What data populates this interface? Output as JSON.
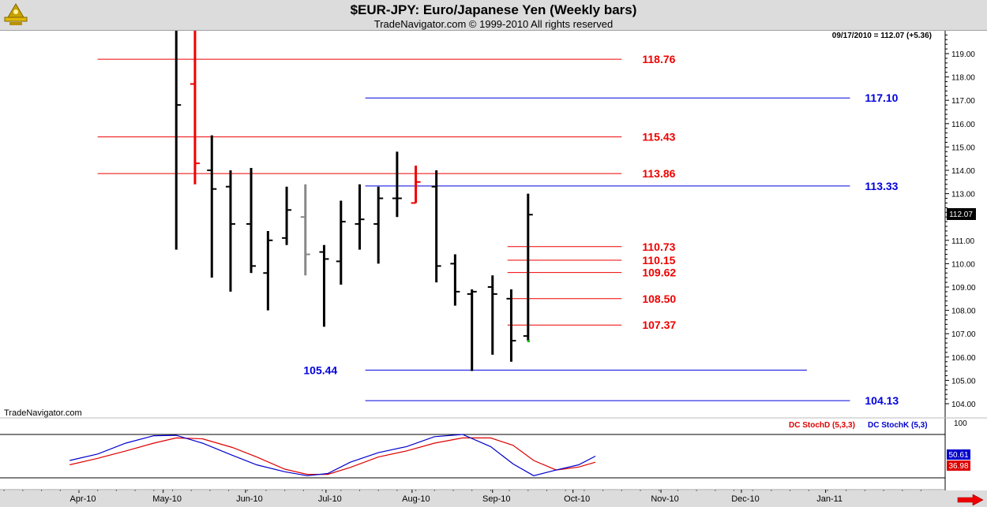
{
  "header": {
    "title": "$EUR-JPY:  Euro/Japanese Yen  (Weekly bars)",
    "subtitle": "TradeNavigator.com © 1999-2010 All rights reserved"
  },
  "watermark": "TradeNavigator.com",
  "last_info": "09/17/2010 = 112.07 (+5.36)",
  "last_price_label": "112.07",
  "colors": {
    "up_bar": "#000000",
    "red_bar": "#ee0000",
    "gray_bar": "#888888",
    "red_level": "#ee0000",
    "blue_level": "#0000dd",
    "stoch_d": "#dd0000",
    "stoch_k": "#0000cc",
    "header_bg": "#dcdcdc"
  },
  "indicator": {
    "stoch_d_label": "DC StochD (5,3,3)",
    "stoch_k_label": "DC StochK (5,3)",
    "top_label": "100",
    "stoch_k_value": "50.61",
    "stoch_d_value": "36.98"
  },
  "chart_data": {
    "type": "ohlc",
    "title": "$EUR-JPY:  Euro/Japanese Yen  (Weekly bars)",
    "ylim": [
      103.6,
      119.5
    ],
    "y_ticks": [
      "104.00",
      "105.00",
      "106.00",
      "107.00",
      "108.00",
      "109.00",
      "110.00",
      "111.00",
      "112.00",
      "113.00",
      "114.00",
      "115.00",
      "116.00",
      "117.00",
      "118.00",
      "119.00"
    ],
    "x_ticks": [
      {
        "label": "Apr-10",
        "week": 0
      },
      {
        "label": "May-10",
        "week": 4.5
      },
      {
        "label": "Jun-10",
        "week": 8.9
      },
      {
        "label": "Jul-10",
        "week": 13.2
      },
      {
        "label": "Aug-10",
        "week": 17.8
      },
      {
        "label": "Sep-10",
        "week": 22.1
      },
      {
        "label": "Oct-10",
        "week": 26.4
      },
      {
        "label": "Nov-10",
        "week": 31.1
      },
      {
        "label": "Dec-10",
        "week": 35.4
      },
      {
        "label": "Jan-11",
        "week": 39.9
      }
    ],
    "bars": [
      {
        "week": 5.2,
        "open": 120.5,
        "high": 120.5,
        "low": 110.6,
        "close": 116.8,
        "color": "black"
      },
      {
        "week": 6.2,
        "open": 117.7,
        "high": 120.5,
        "low": 113.4,
        "close": 114.3,
        "color": "red"
      },
      {
        "week": 7.1,
        "open": 114.0,
        "high": 115.5,
        "low": 109.4,
        "close": 113.2,
        "color": "black"
      },
      {
        "week": 8.1,
        "open": 113.3,
        "high": 114.0,
        "low": 108.8,
        "close": 111.7,
        "color": "black"
      },
      {
        "week": 9.2,
        "open": 111.7,
        "high": 114.1,
        "low": 109.6,
        "close": 109.9,
        "color": "black"
      },
      {
        "week": 10.1,
        "open": 109.6,
        "high": 111.4,
        "low": 108.0,
        "close": 111.0,
        "color": "black"
      },
      {
        "week": 11.1,
        "open": 111.1,
        "high": 113.3,
        "low": 110.8,
        "close": 112.3,
        "color": "black"
      },
      {
        "week": 12.1,
        "open": 112.0,
        "high": 113.4,
        "low": 109.5,
        "close": 110.4,
        "color": "gray"
      },
      {
        "week": 13.1,
        "open": 110.5,
        "high": 110.8,
        "low": 107.3,
        "close": 110.2,
        "color": "black"
      },
      {
        "week": 14.0,
        "open": 110.1,
        "high": 112.7,
        "low": 109.1,
        "close": 111.8,
        "color": "black"
      },
      {
        "week": 15.0,
        "open": 111.7,
        "high": 113.4,
        "low": 110.6,
        "close": 111.9,
        "color": "black"
      },
      {
        "week": 16.0,
        "open": 111.7,
        "high": 113.3,
        "low": 110.0,
        "close": 112.8,
        "color": "black"
      },
      {
        "week": 17.0,
        "open": 112.8,
        "high": 114.8,
        "low": 112.0,
        "close": 112.8,
        "color": "black"
      },
      {
        "week": 18.0,
        "open": 112.6,
        "high": 114.2,
        "low": 112.6,
        "close": 113.5,
        "color": "red"
      },
      {
        "week": 19.1,
        "open": 113.3,
        "high": 114.0,
        "low": 109.2,
        "close": 109.9,
        "color": "black"
      },
      {
        "week": 20.1,
        "open": 110.0,
        "high": 110.4,
        "low": 108.2,
        "close": 108.8,
        "color": "black"
      },
      {
        "week": 21.0,
        "open": 108.7,
        "high": 108.9,
        "low": 105.4,
        "close": 108.8,
        "color": "black"
      },
      {
        "week": 22.1,
        "open": 109.0,
        "high": 109.5,
        "low": 106.1,
        "close": 108.7,
        "color": "black"
      },
      {
        "week": 23.1,
        "open": 108.5,
        "high": 108.9,
        "low": 105.8,
        "close": 106.7,
        "color": "black"
      },
      {
        "week": 24.0,
        "open": 106.9,
        "high": 113.0,
        "low": 106.7,
        "close": 112.1,
        "color": "black"
      }
    ],
    "levels": [
      {
        "value": 118.76,
        "label": "118.76",
        "color": "red",
        "from": 1.0,
        "to": 29.0,
        "label_side": "right",
        "label_week": 30.1
      },
      {
        "value": 117.1,
        "label": "117.10",
        "color": "blue",
        "from": 15.3,
        "to": 41.2,
        "label_side": "right",
        "label_week": 42.0
      },
      {
        "value": 115.43,
        "label": "115.43",
        "color": "red",
        "from": 1.0,
        "to": 29.0,
        "label_side": "right",
        "label_week": 30.1
      },
      {
        "value": 113.86,
        "label": "113.86",
        "color": "red",
        "from": 1.0,
        "to": 29.0,
        "label_side": "right",
        "label_week": 30.1
      },
      {
        "value": 113.33,
        "label": "113.33",
        "color": "blue",
        "from": 15.3,
        "to": 41.2,
        "label_side": "right",
        "label_week": 42.0
      },
      {
        "value": 110.73,
        "label": "110.73",
        "color": "red",
        "from": 22.9,
        "to": 29.0,
        "label_side": "right",
        "label_week": 30.1
      },
      {
        "value": 110.15,
        "label": "110.15",
        "color": "red",
        "from": 22.9,
        "to": 29.0,
        "label_side": "right",
        "label_week": 30.1
      },
      {
        "value": 109.62,
        "label": "109.62",
        "color": "red",
        "from": 22.9,
        "to": 29.0,
        "label_side": "right",
        "label_week": 30.1
      },
      {
        "value": 108.5,
        "label": "108.50",
        "color": "red",
        "from": 22.9,
        "to": 29.0,
        "label_side": "right",
        "label_week": 30.1
      },
      {
        "value": 107.37,
        "label": "107.37",
        "color": "red",
        "from": 22.9,
        "to": 29.0,
        "label_side": "right",
        "label_week": 30.1
      },
      {
        "value": 105.44,
        "label": "105.44",
        "color": "blue",
        "from": 15.3,
        "to": 38.9,
        "label_side": "left",
        "label_week": 12.0
      },
      {
        "value": 104.13,
        "label": "104.13",
        "color": "blue",
        "from": 15.3,
        "to": 41.2,
        "label_side": "right",
        "label_week": 42.0
      }
    ],
    "stoch_ylim": [
      0,
      100
    ],
    "stoch_d": [
      {
        "week": -0.5,
        "v": 30
      },
      {
        "week": 1,
        "v": 45
      },
      {
        "week": 2.5,
        "v": 62
      },
      {
        "week": 4,
        "v": 80
      },
      {
        "week": 5.2,
        "v": 92
      },
      {
        "week": 6.6,
        "v": 90
      },
      {
        "week": 8.2,
        "v": 70
      },
      {
        "week": 9.5,
        "v": 48
      },
      {
        "week": 11,
        "v": 20
      },
      {
        "week": 12.2,
        "v": 8
      },
      {
        "week": 13.3,
        "v": 8
      },
      {
        "week": 14.5,
        "v": 24
      },
      {
        "week": 16,
        "v": 48
      },
      {
        "week": 17.5,
        "v": 62
      },
      {
        "week": 19,
        "v": 80
      },
      {
        "week": 20.5,
        "v": 92
      },
      {
        "week": 22,
        "v": 92
      },
      {
        "week": 23.2,
        "v": 75
      },
      {
        "week": 24.3,
        "v": 40
      },
      {
        "week": 25.5,
        "v": 18
      },
      {
        "week": 26.7,
        "v": 25
      },
      {
        "week": 27.6,
        "v": 36
      }
    ],
    "stoch_k": [
      {
        "week": -0.5,
        "v": 40
      },
      {
        "week": 1,
        "v": 55
      },
      {
        "week": 2.5,
        "v": 80
      },
      {
        "week": 4,
        "v": 97
      },
      {
        "week": 5.2,
        "v": 98
      },
      {
        "week": 6.6,
        "v": 80
      },
      {
        "week": 8.2,
        "v": 52
      },
      {
        "week": 9.5,
        "v": 30
      },
      {
        "week": 11,
        "v": 14
      },
      {
        "week": 12.2,
        "v": 5
      },
      {
        "week": 13.3,
        "v": 10
      },
      {
        "week": 14.5,
        "v": 36
      },
      {
        "week": 16,
        "v": 58
      },
      {
        "week": 17.5,
        "v": 72
      },
      {
        "week": 19,
        "v": 95
      },
      {
        "week": 20.5,
        "v": 100
      },
      {
        "week": 22,
        "v": 72
      },
      {
        "week": 23.2,
        "v": 32
      },
      {
        "week": 24.3,
        "v": 5
      },
      {
        "week": 25.5,
        "v": 18
      },
      {
        "week": 26.7,
        "v": 30
      },
      {
        "week": 27.6,
        "v": 50
      }
    ]
  }
}
